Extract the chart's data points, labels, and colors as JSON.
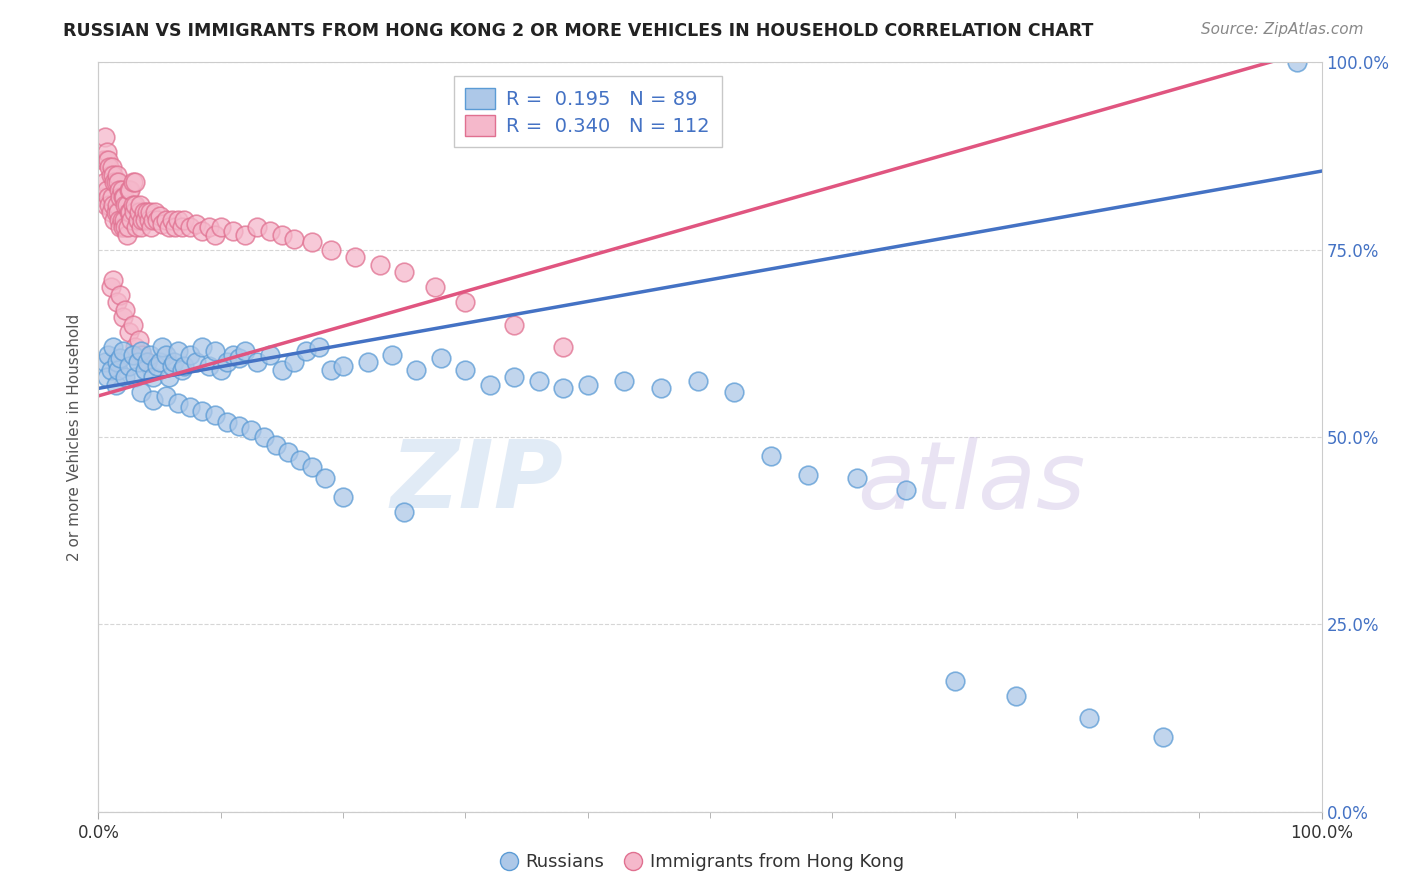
{
  "title": "RUSSIAN VS IMMIGRANTS FROM HONG KONG 2 OR MORE VEHICLES IN HOUSEHOLD CORRELATION CHART",
  "source": "Source: ZipAtlas.com",
  "ylabel": "2 or more Vehicles in Household",
  "ytick_labels": [
    "",
    "25.0%",
    "50.0%",
    "75.0%",
    "100.0%"
  ],
  "ytick_right_labels": [
    "0.0%",
    "25.0%",
    "50.0%",
    "75.0%",
    "100.0%"
  ],
  "ytick_positions": [
    0.0,
    0.25,
    0.5,
    0.75,
    1.0
  ],
  "xtick_labels": [
    "0.0%",
    "100.0%"
  ],
  "xtick_positions": [
    0.0,
    1.0
  ],
  "xlim": [
    0.0,
    1.0
  ],
  "ylim": [
    0.0,
    1.0
  ],
  "blue_R": 0.195,
  "blue_N": 89,
  "pink_R": 0.34,
  "pink_N": 112,
  "blue_color": "#adc8e8",
  "pink_color": "#f5b8cb",
  "blue_edge_color": "#5b9bd5",
  "pink_edge_color": "#e07090",
  "blue_line_color": "#4472c4",
  "pink_line_color": "#e05580",
  "watermark_zip": "ZIP",
  "watermark_atlas": "atlas",
  "title_color": "#222222",
  "source_color": "#888888",
  "axis_color": "#4472c4",
  "ylabel_color": "#555555",
  "blue_line_start_y": 0.565,
  "blue_line_end_y": 0.855,
  "pink_line_start_y": 0.555,
  "pink_line_end_y": 1.02,
  "blue_points_x": [
    0.005,
    0.007,
    0.008,
    0.01,
    0.012,
    0.014,
    0.015,
    0.016,
    0.018,
    0.02,
    0.022,
    0.025,
    0.028,
    0.03,
    0.032,
    0.035,
    0.038,
    0.04,
    0.042,
    0.045,
    0.048,
    0.05,
    0.052,
    0.055,
    0.058,
    0.06,
    0.062,
    0.065,
    0.068,
    0.07,
    0.075,
    0.08,
    0.085,
    0.09,
    0.095,
    0.1,
    0.105,
    0.11,
    0.115,
    0.12,
    0.13,
    0.14,
    0.15,
    0.16,
    0.17,
    0.18,
    0.19,
    0.2,
    0.22,
    0.24,
    0.26,
    0.28,
    0.3,
    0.32,
    0.34,
    0.36,
    0.38,
    0.4,
    0.43,
    0.46,
    0.49,
    0.52,
    0.55,
    0.58,
    0.62,
    0.66,
    0.7,
    0.75,
    0.81,
    0.87,
    0.98,
    0.035,
    0.045,
    0.055,
    0.065,
    0.075,
    0.085,
    0.095,
    0.105,
    0.115,
    0.125,
    0.135,
    0.145,
    0.155,
    0.165,
    0.175,
    0.185,
    0.2,
    0.25
  ],
  "blue_points_y": [
    0.6,
    0.58,
    0.61,
    0.59,
    0.62,
    0.57,
    0.6,
    0.59,
    0.605,
    0.615,
    0.58,
    0.595,
    0.61,
    0.58,
    0.6,
    0.615,
    0.59,
    0.6,
    0.61,
    0.58,
    0.595,
    0.6,
    0.62,
    0.61,
    0.58,
    0.595,
    0.6,
    0.615,
    0.59,
    0.595,
    0.61,
    0.6,
    0.62,
    0.595,
    0.615,
    0.59,
    0.6,
    0.61,
    0.605,
    0.615,
    0.6,
    0.61,
    0.59,
    0.6,
    0.615,
    0.62,
    0.59,
    0.595,
    0.6,
    0.61,
    0.59,
    0.605,
    0.59,
    0.57,
    0.58,
    0.575,
    0.565,
    0.57,
    0.575,
    0.565,
    0.575,
    0.56,
    0.475,
    0.45,
    0.445,
    0.43,
    0.175,
    0.155,
    0.125,
    0.1,
    1.0,
    0.56,
    0.55,
    0.555,
    0.545,
    0.54,
    0.535,
    0.53,
    0.52,
    0.515,
    0.51,
    0.5,
    0.49,
    0.48,
    0.47,
    0.46,
    0.445,
    0.42,
    0.4
  ],
  "pink_points_x": [
    0.003,
    0.004,
    0.005,
    0.005,
    0.006,
    0.006,
    0.007,
    0.007,
    0.008,
    0.008,
    0.009,
    0.009,
    0.01,
    0.01,
    0.011,
    0.011,
    0.012,
    0.012,
    0.013,
    0.013,
    0.014,
    0.014,
    0.015,
    0.015,
    0.016,
    0.016,
    0.017,
    0.017,
    0.018,
    0.018,
    0.019,
    0.019,
    0.02,
    0.02,
    0.021,
    0.021,
    0.022,
    0.022,
    0.023,
    0.023,
    0.024,
    0.025,
    0.025,
    0.026,
    0.026,
    0.027,
    0.028,
    0.028,
    0.029,
    0.03,
    0.03,
    0.031,
    0.032,
    0.033,
    0.034,
    0.035,
    0.036,
    0.037,
    0.038,
    0.04,
    0.041,
    0.042,
    0.043,
    0.045,
    0.046,
    0.048,
    0.05,
    0.052,
    0.055,
    0.058,
    0.06,
    0.063,
    0.065,
    0.068,
    0.07,
    0.075,
    0.08,
    0.085,
    0.09,
    0.095,
    0.1,
    0.11,
    0.12,
    0.13,
    0.14,
    0.15,
    0.16,
    0.175,
    0.19,
    0.21,
    0.23,
    0.25,
    0.275,
    0.3,
    0.34,
    0.38,
    0.01,
    0.012,
    0.015,
    0.018,
    0.02,
    0.022,
    0.025,
    0.028,
    0.03,
    0.033,
    0.036,
    0.04
  ],
  "pink_points_y": [
    0.82,
    0.87,
    0.84,
    0.9,
    0.81,
    0.87,
    0.83,
    0.88,
    0.82,
    0.87,
    0.81,
    0.86,
    0.8,
    0.85,
    0.82,
    0.86,
    0.81,
    0.85,
    0.79,
    0.84,
    0.8,
    0.84,
    0.81,
    0.85,
    0.8,
    0.84,
    0.79,
    0.83,
    0.78,
    0.82,
    0.79,
    0.83,
    0.78,
    0.82,
    0.79,
    0.82,
    0.78,
    0.81,
    0.77,
    0.81,
    0.78,
    0.8,
    0.83,
    0.8,
    0.83,
    0.79,
    0.81,
    0.84,
    0.8,
    0.81,
    0.84,
    0.78,
    0.79,
    0.8,
    0.81,
    0.78,
    0.79,
    0.8,
    0.79,
    0.8,
    0.79,
    0.8,
    0.78,
    0.79,
    0.8,
    0.79,
    0.795,
    0.785,
    0.79,
    0.78,
    0.79,
    0.78,
    0.79,
    0.78,
    0.79,
    0.78,
    0.785,
    0.775,
    0.78,
    0.77,
    0.78,
    0.775,
    0.77,
    0.78,
    0.775,
    0.77,
    0.765,
    0.76,
    0.75,
    0.74,
    0.73,
    0.72,
    0.7,
    0.68,
    0.65,
    0.62,
    0.7,
    0.71,
    0.68,
    0.69,
    0.66,
    0.67,
    0.64,
    0.65,
    0.62,
    0.63,
    0.61,
    0.6
  ]
}
